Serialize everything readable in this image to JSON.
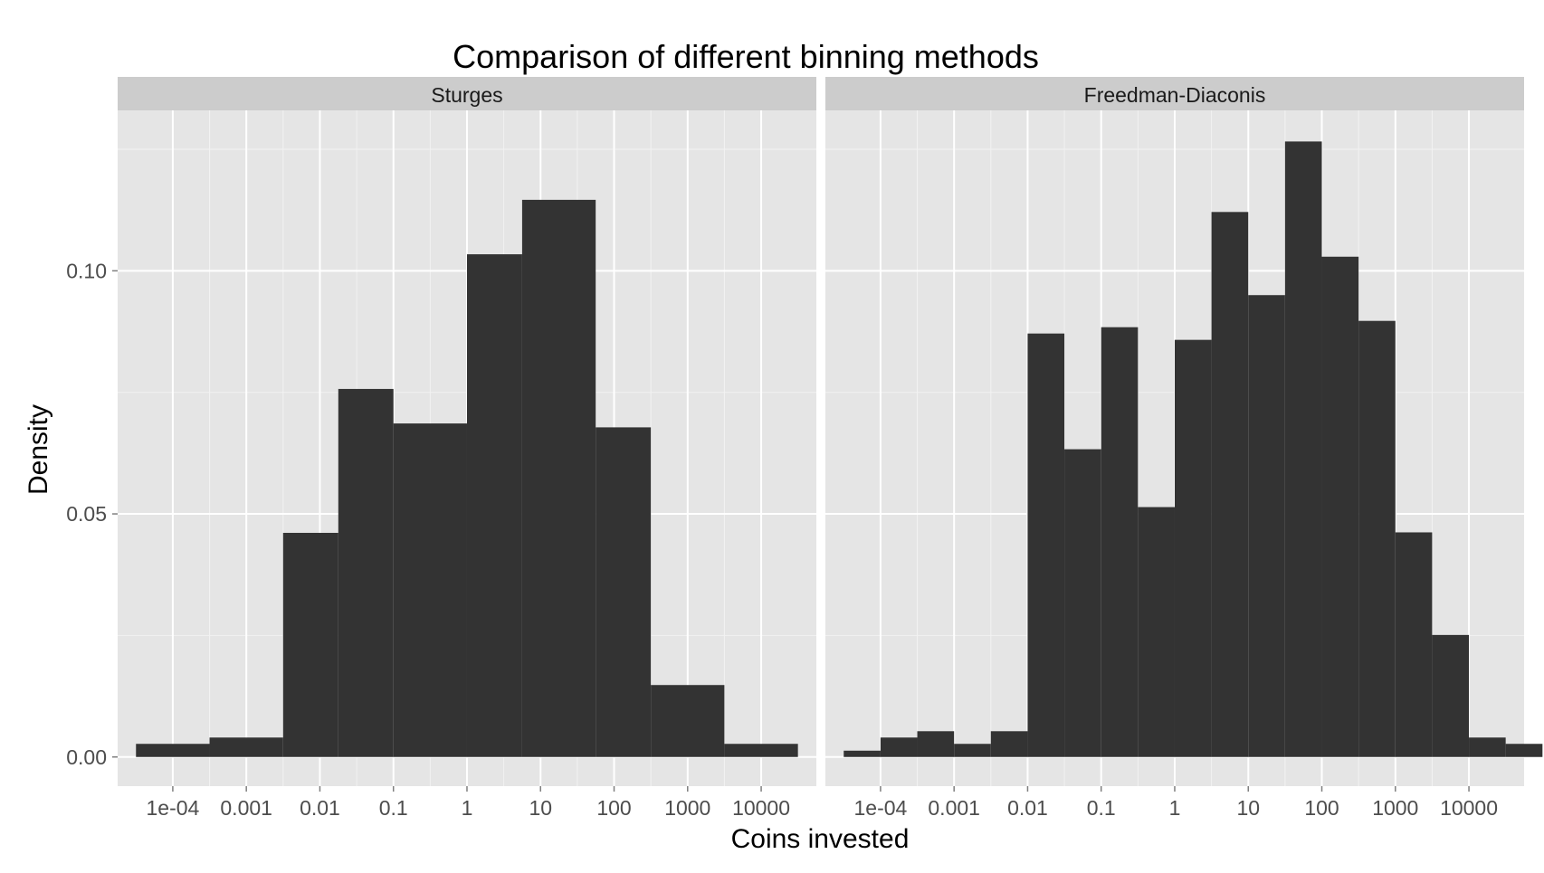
{
  "chart_data": {
    "type": "bar",
    "title": "Comparison of different binning methods",
    "xlabel": "Coins invested",
    "ylabel": "Density",
    "x_scale": "log10",
    "xlim": [
      1.78e-05,
      56234
    ],
    "ylim": [
      -0.006,
      0.133
    ],
    "x_ticks": [
      0.0001,
      0.001,
      0.01,
      0.1,
      1,
      10,
      100,
      1000,
      10000
    ],
    "x_tick_labels": [
      "1e-04",
      "0.001",
      "0.01",
      "0.1",
      "1",
      "10",
      "100",
      "1000",
      "10000"
    ],
    "y_ticks": [
      0.0,
      0.05,
      0.1
    ],
    "y_tick_labels": [
      "0.00",
      "0.05",
      "0.10"
    ],
    "grid": true,
    "panels": [
      {
        "label": "Sturges",
        "bins": [
          {
            "x0": 3.16e-05,
            "x1": 0.000316,
            "density": 0.0027
          },
          {
            "x0": 0.000316,
            "x1": 0.00316,
            "density": 0.004
          },
          {
            "x0": 0.00316,
            "x1": 0.0178,
            "density": 0.0461
          },
          {
            "x0": 0.0178,
            "x1": 0.1,
            "density": 0.0757
          },
          {
            "x0": 0.1,
            "x1": 1,
            "density": 0.0686
          },
          {
            "x0": 1,
            "x1": 5.62,
            "density": 0.1034
          },
          {
            "x0": 5.62,
            "x1": 56.2,
            "density": 0.1146
          },
          {
            "x0": 56.2,
            "x1": 316,
            "density": 0.0678
          },
          {
            "x0": 316,
            "x1": 3160,
            "density": 0.0148
          },
          {
            "x0": 3160,
            "x1": 31600,
            "density": 0.0027
          }
        ]
      },
      {
        "label": "Freedman-Diaconis",
        "bins": [
          {
            "x0": 3.16e-05,
            "x1": 0.0001,
            "density": 0.0013
          },
          {
            "x0": 0.0001,
            "x1": 0.000316,
            "density": 0.004
          },
          {
            "x0": 0.000316,
            "x1": 0.001,
            "density": 0.0053
          },
          {
            "x0": 0.001,
            "x1": 0.00316,
            "density": 0.0027
          },
          {
            "x0": 0.00316,
            "x1": 0.01,
            "density": 0.0053
          },
          {
            "x0": 0.01,
            "x1": 0.0316,
            "density": 0.0871
          },
          {
            "x0": 0.0316,
            "x1": 0.1,
            "density": 0.0633
          },
          {
            "x0": 0.1,
            "x1": 0.316,
            "density": 0.0884
          },
          {
            "x0": 0.316,
            "x1": 1,
            "density": 0.0514
          },
          {
            "x0": 1,
            "x1": 3.16,
            "density": 0.0858
          },
          {
            "x0": 3.16,
            "x1": 10,
            "density": 0.1121
          },
          {
            "x0": 10,
            "x1": 31.6,
            "density": 0.095
          },
          {
            "x0": 31.6,
            "x1": 100,
            "density": 0.1266
          },
          {
            "x0": 100,
            "x1": 316,
            "density": 0.1029
          },
          {
            "x0": 316,
            "x1": 1000,
            "density": 0.0897
          },
          {
            "x0": 1000,
            "x1": 3160,
            "density": 0.0462
          },
          {
            "x0": 3160,
            "x1": 10000,
            "density": 0.0251
          },
          {
            "x0": 10000,
            "x1": 31600,
            "density": 0.004
          },
          {
            "x0": 31600,
            "x1": 100000,
            "density": 0.0027
          }
        ]
      }
    ],
    "colors": {
      "bar": "#333333",
      "panel_bg": "#e5e5e5",
      "strip_bg": "#cccccc",
      "grid_major": "#ffffff",
      "grid_minor": "#f2f2f2"
    }
  }
}
